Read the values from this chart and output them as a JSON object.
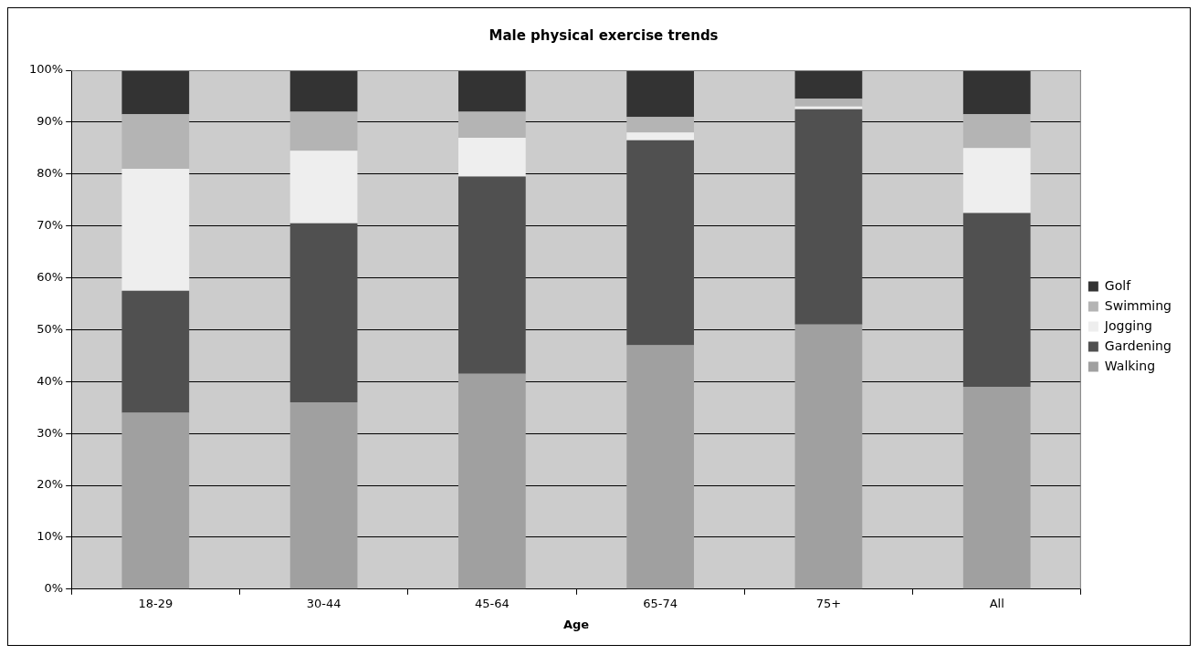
{
  "chart_data": {
    "type": "bar",
    "title": "Male physical exercise trends",
    "xlabel": "Age",
    "categories": [
      "18-29",
      "30-44",
      "45-64",
      "65-74",
      "75+",
      "All"
    ],
    "stacked": true,
    "series": [
      {
        "name": "Walking",
        "color": "#a0a0a0",
        "values": [
          34,
          36,
          41.5,
          47,
          51,
          39
        ]
      },
      {
        "name": "Gardening",
        "color": "#505050",
        "values": [
          23.5,
          34.5,
          38,
          39.5,
          41.5,
          33.5
        ]
      },
      {
        "name": "Jogging",
        "color": "#eeeeee",
        "values": [
          23.5,
          14,
          7.5,
          1.5,
          0.5,
          12.5
        ]
      },
      {
        "name": "Swimming",
        "color": "#b4b4b4",
        "values": [
          10.5,
          7.5,
          5,
          3,
          1.5,
          6.5
        ]
      },
      {
        "name": "Golf",
        "color": "#333333",
        "values": [
          8.5,
          8,
          8,
          9,
          5.5,
          8.5
        ]
      }
    ],
    "ylim": [
      0,
      100
    ],
    "yticks": [
      {
        "value": 0,
        "label": "0%"
      },
      {
        "value": 10,
        "label": "10%"
      },
      {
        "value": 20,
        "label": "20%"
      },
      {
        "value": 30,
        "label": "30%"
      },
      {
        "value": 40,
        "label": "40%"
      },
      {
        "value": 50,
        "label": "50%"
      },
      {
        "value": 60,
        "label": "60%"
      },
      {
        "value": 70,
        "label": "70%"
      },
      {
        "value": 80,
        "label": "80%"
      },
      {
        "value": 90,
        "label": "90%"
      },
      {
        "value": 100,
        "label": "100%"
      }
    ],
    "grid": "y",
    "legend": "right"
  }
}
